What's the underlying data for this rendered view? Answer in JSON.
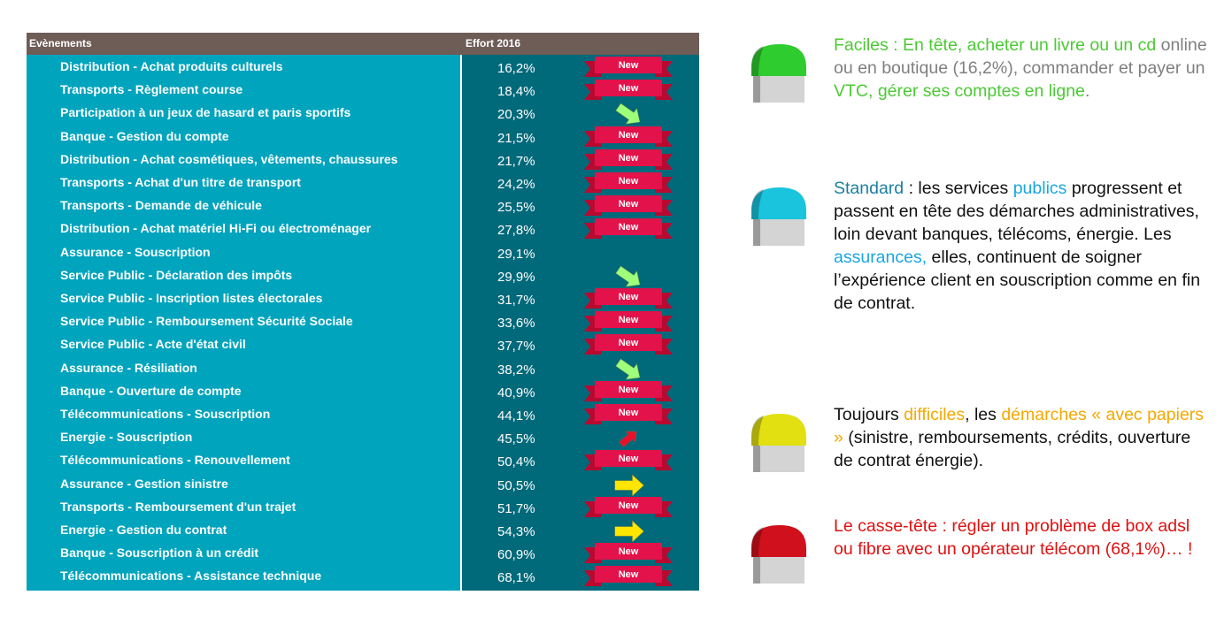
{
  "table": {
    "headers": [
      "Evènements",
      "Effort 2016"
    ],
    "rows": [
      {
        "name": "Distribution -  Achat produits culturels",
        "value": "16,2%",
        "badge": "New"
      },
      {
        "name": "Transports - Règlement course",
        "value": "18,4%",
        "badge": "New"
      },
      {
        "name": "Participation à un jeux de hasard et paris sportifs",
        "value": "20,3%",
        "arrow": "down-right"
      },
      {
        "name": "Banque - Gestion du compte",
        "value": "21,5%",
        "badge": "New"
      },
      {
        "name": "Distribution -  Achat cosmétiques, vêtements, chaussures",
        "value": "21,7%",
        "badge": "New"
      },
      {
        "name": "Transports - Achat d'un titre de transport",
        "value": "24,2%",
        "badge": "New"
      },
      {
        "name": "Transports - Demande de véhicule",
        "value": "25,5%",
        "badge": "New"
      },
      {
        "name": "Distribution -  Achat matériel Hi-Fi ou électroménager",
        "value": "27,8%",
        "badge": "New"
      },
      {
        "name": "Assurance - Souscription",
        "value": "29,1%"
      },
      {
        "name": "Service Public - Déclaration des impôts",
        "value": "29,9%",
        "arrow": "down-right"
      },
      {
        "name": "Service Public - Inscription listes électorales",
        "value": "31,7%",
        "badge": "New"
      },
      {
        "name": "Service Public - Remboursement Sécurité Sociale",
        "value": "33,6%",
        "badge": "New"
      },
      {
        "name": "Service Public - Acte d'état civil",
        "value": "37,7%",
        "badge": "New"
      },
      {
        "name": "Assurance - Résiliation",
        "value": "38,2%",
        "arrow": "down-right"
      },
      {
        "name": "Banque - Ouverture de compte",
        "value": "40,9%",
        "badge": "New"
      },
      {
        "name": "Télécommunications - Souscription",
        "value": "44,1%",
        "badge": "New"
      },
      {
        "name": "Energie - Souscription",
        "value": "45,5%",
        "arrow": "up-right"
      },
      {
        "name": "Télécommunications - Renouvellement",
        "value": "50,4%",
        "badge": "New"
      },
      {
        "name": "Assurance - Gestion sinistre",
        "value": "50,5%",
        "arrow": "right"
      },
      {
        "name": "Transports - Remboursement d'un trajet",
        "value": "51,7%",
        "badge": "New"
      },
      {
        "name": "Energie - Gestion du contrat",
        "value": "54,3%",
        "arrow": "right"
      },
      {
        "name": "Banque - Souscription à un crédit",
        "value": "60,9%",
        "badge": "New"
      },
      {
        "name": "Télécommunications - Assistance technique",
        "value": "68,1%",
        "badge": "New"
      }
    ]
  },
  "notes": [
    {
      "icon_color": "#2ecc2e",
      "segments": [
        {
          "text": "Faciles : En tête, acheter un livre ou un cd",
          "color": "#4cc934"
        },
        {
          "text": " online ou en boutique (16,2%), commander et payer un ",
          "color": "#7f7f7f"
        },
        {
          "text": "VTC, gérer ses comptes en ligne",
          "color": "#4cc934"
        },
        {
          "text": ".",
          "color": "#7f7f7f"
        }
      ]
    },
    {
      "icon_color": "#19c4dc",
      "segments": [
        {
          "text": "Standard",
          "color": "#1b7fa0"
        },
        {
          "text": " : les services ",
          "color": "#111111"
        },
        {
          "text": "publics",
          "color": "#1aa6e0"
        },
        {
          "text": " progressent et passent en tête des démarches administratives, loin devant banques, télécoms, énergie. Les ",
          "color": "#111111"
        },
        {
          "text": "assurances,",
          "color": "#1aa6e0"
        },
        {
          "text": " elles, continuent de soigner l’expérience client en souscription comme en fin de contrat.",
          "color": "#111111"
        }
      ]
    },
    {
      "icon_color": "#e2e010",
      "segments": [
        {
          "text": "Toujours ",
          "color": "#111111"
        },
        {
          "text": "difficiles",
          "color": "#f5a800"
        },
        {
          "text": ", les ",
          "color": "#111111"
        },
        {
          "text": "démarches « avec papiers »",
          "color": "#f5a800"
        },
        {
          "text": " (sinistre, remboursements, crédits, ouverture de contrat énergie).",
          "color": "#111111"
        }
      ]
    },
    {
      "icon_color": "#d0101c",
      "segments": [
        {
          "text": "Le casse-tête : régler un problème de box adsl ou fibre avec un opérateur télécom (68,1%)… !",
          "color": "#e01010"
        }
      ]
    }
  ]
}
